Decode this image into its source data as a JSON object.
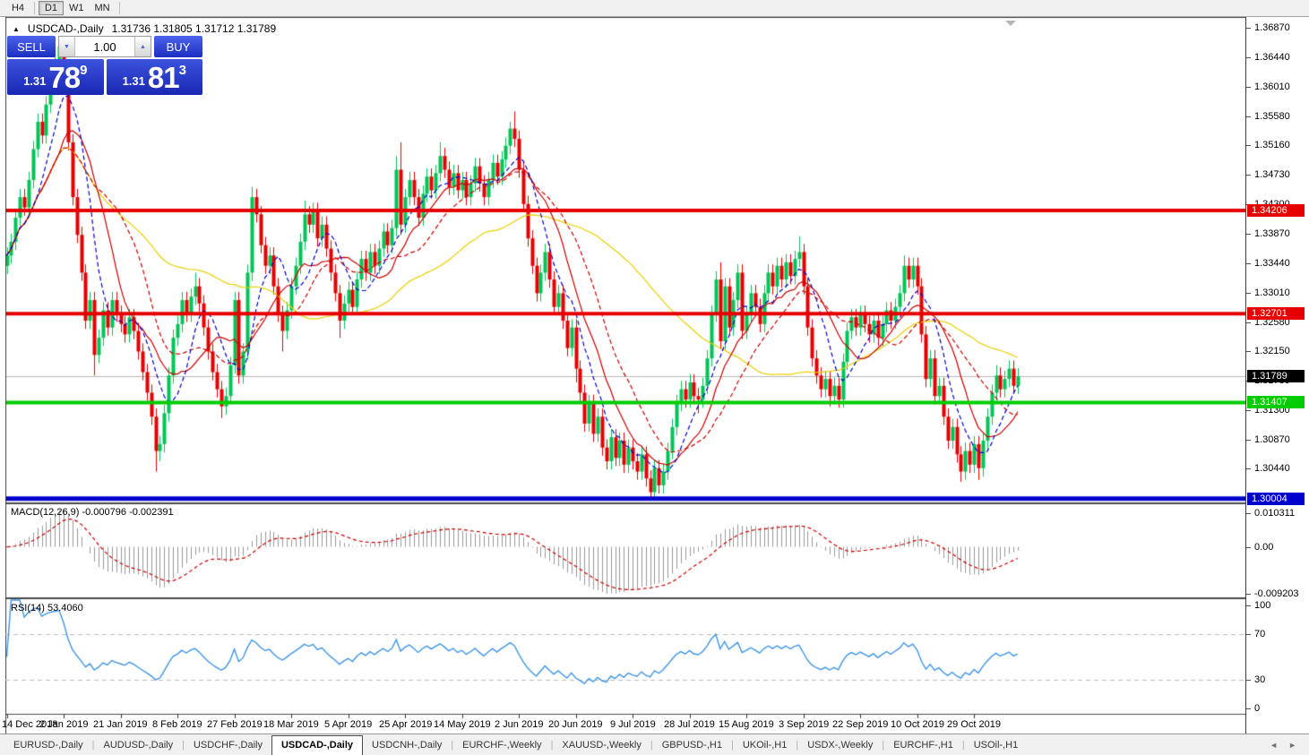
{
  "toolbar": {
    "timeframes": [
      "H4",
      "D1",
      "W1",
      "MN"
    ],
    "active": "D1"
  },
  "header": {
    "collapse_icon": "▲",
    "symbol": "USDCAD-,Daily",
    "ohlc_line": "1.31736 1.31805 1.31712 1.31789"
  },
  "trade_panel": {
    "sell_label": "SELL",
    "buy_label": "BUY",
    "lot_value": "1.00",
    "lot_down_icon": "▼",
    "lot_up_icon": "▲",
    "sell_price": {
      "prefix": "1.31",
      "big": "78",
      "sup": "9"
    },
    "buy_price": {
      "prefix": "1.31",
      "big": "81",
      "sup": "3"
    }
  },
  "price_axis": {
    "ticks": [
      "1.36870",
      "1.36440",
      "1.36010",
      "1.35580",
      "1.35160",
      "1.34730",
      "1.34300",
      "1.33870",
      "1.33440",
      "1.33010",
      "1.32580",
      "1.32150",
      "1.31730",
      "1.31300",
      "1.30870",
      "1.30440"
    ],
    "line_labels": [
      {
        "text": "1.34206",
        "price": 1.34206,
        "bg": "#e60000",
        "fg": "#ffffff"
      },
      {
        "text": "1.32701",
        "price": 1.32701,
        "bg": "#e60000",
        "fg": "#ffffff"
      },
      {
        "text": "1.31789",
        "price": 1.31789,
        "bg": "#000000",
        "fg": "#ffffff"
      },
      {
        "text": "1.31407",
        "price": 1.31407,
        "bg": "#00cc00",
        "fg": "#ffffff"
      },
      {
        "text": "1.30004",
        "price": 1.30004,
        "bg": "#0000cd",
        "fg": "#ffffff"
      }
    ]
  },
  "indicators": {
    "macd_label": "MACD(12,26,9) -0.000796 -0.002391",
    "rsi_label": "RSI(14) 53.4060",
    "macd_axis": [
      "0.010311",
      "0.00",
      "-0.009203"
    ],
    "rsi_axis": [
      "100",
      "70",
      "30",
      "0"
    ]
  },
  "chart_data": {
    "type": "candlestick",
    "symbol": "USDCAD",
    "period": "Daily",
    "x_labels": [
      "14 Dec 2018",
      "2 Jan 2019",
      "21 Jan 2019",
      "8 Feb 2019",
      "27 Feb 2019",
      "18 Mar 2019",
      "5 Apr 2019",
      "25 Apr 2019",
      "14 May 2019",
      "2 Jun 2019",
      "20 Jun 2019",
      "9 Jul 2019",
      "28 Jul 2019",
      "15 Aug 2019",
      "3 Sep 2019",
      "22 Sep 2019",
      "10 Oct 2019",
      "29 Oct 2019"
    ],
    "label_interval": 13,
    "price_range": [
      1.2995,
      1.37
    ],
    "first_open": 1.334,
    "default_wick": 0.0012,
    "closes": [
      1.3355,
      1.3375,
      1.341,
      1.344,
      1.3425,
      1.3465,
      1.351,
      1.355,
      1.353,
      1.3575,
      1.3615,
      1.364,
      1.366,
      1.361,
      1.352,
      1.344,
      1.3385,
      1.333,
      1.326,
      1.329,
      1.321,
      1.3235,
      1.3275,
      1.325,
      1.329,
      1.327,
      1.3255,
      1.324,
      1.3265,
      1.3245,
      1.3215,
      1.3185,
      1.3155,
      1.312,
      1.307,
      1.308,
      1.3125,
      1.318,
      1.3235,
      1.3255,
      1.329,
      1.327,
      1.3295,
      1.331,
      1.3285,
      1.325,
      1.3215,
      1.3185,
      1.316,
      1.3135,
      1.315,
      1.3195,
      1.329,
      1.318,
      1.3215,
      1.333,
      1.344,
      1.3415,
      1.337,
      1.334,
      1.3355,
      1.331,
      1.327,
      1.3245,
      1.3275,
      1.331,
      1.334,
      1.3375,
      1.3415,
      1.34,
      1.342,
      1.338,
      1.34,
      1.3365,
      1.333,
      1.33,
      1.326,
      1.3285,
      1.3305,
      1.328,
      1.332,
      1.335,
      1.333,
      1.336,
      1.334,
      1.3365,
      1.339,
      1.337,
      1.3395,
      1.348,
      1.34,
      1.344,
      1.3465,
      1.344,
      1.341,
      1.3445,
      1.347,
      1.345,
      1.3475,
      1.35,
      1.348,
      1.3455,
      1.3475,
      1.345,
      1.3465,
      1.344,
      1.346,
      1.3485,
      1.346,
      1.344,
      1.3465,
      1.349,
      1.347,
      1.3495,
      1.3515,
      1.354,
      1.3525,
      1.348,
      1.343,
      1.338,
      1.334,
      1.33,
      1.333,
      1.336,
      1.332,
      1.328,
      1.33,
      1.326,
      1.322,
      1.325,
      1.319,
      1.3155,
      1.311,
      1.314,
      1.3095,
      1.312,
      1.3075,
      1.3055,
      1.309,
      1.306,
      1.3085,
      1.305,
      1.3075,
      1.3055,
      1.304,
      1.3065,
      1.303,
      1.301,
      1.3045,
      1.302,
      1.304,
      1.307,
      1.3105,
      1.314,
      1.316,
      1.3145,
      1.317,
      1.315,
      1.3145,
      1.3165,
      1.3205,
      1.327,
      1.332,
      1.323,
      1.331,
      1.325,
      1.329,
      1.333,
      1.3245,
      1.327,
      1.33,
      1.328,
      1.3255,
      1.33,
      1.333,
      1.331,
      1.334,
      1.332,
      1.3345,
      1.3325,
      1.335,
      1.336,
      1.331,
      1.325,
      1.3205,
      1.318,
      1.316,
      1.3175,
      1.315,
      1.3165,
      1.3145,
      1.32,
      1.3245,
      1.3265,
      1.325,
      1.327,
      1.3255,
      1.324,
      1.326,
      1.3235,
      1.3255,
      1.3275,
      1.326,
      1.328,
      1.33,
      1.334,
      1.332,
      1.334,
      1.331,
      1.324,
      1.3175,
      1.3205,
      1.315,
      1.3165,
      1.312,
      1.3085,
      1.3105,
      1.3065,
      1.304,
      1.307,
      1.305,
      1.308,
      1.3045,
      1.3085,
      1.312,
      1.3155,
      1.318,
      1.316,
      1.3175,
      1.319,
      1.3165,
      1.31789
    ],
    "wick_overrides": {
      "12": [
        1.3664,
        null
      ],
      "13": [
        1.3662,
        null
      ],
      "20": [
        null,
        1.318
      ],
      "34": [
        null,
        1.304
      ],
      "35": [
        null,
        1.3055
      ],
      "43": [
        1.333,
        null
      ],
      "49": [
        null,
        1.3118
      ],
      "56": [
        1.3455,
        null
      ],
      "63": [
        null,
        1.3215
      ],
      "68": [
        1.3435,
        null
      ],
      "76": [
        null,
        1.3235
      ],
      "89": [
        1.35,
        null
      ],
      "90": [
        1.352,
        1.3385
      ],
      "99": [
        1.352,
        null
      ],
      "115": [
        1.355,
        null
      ],
      "116": [
        1.3565,
        null
      ],
      "130": [
        null,
        1.317
      ],
      "147": [
        null,
        1.3
      ],
      "158": [
        null,
        1.3125
      ],
      "163": [
        1.3345,
        null
      ],
      "181": [
        1.3383,
        null
      ],
      "188": [
        null,
        1.3135
      ],
      "205": [
        1.3355,
        null
      ],
      "218": [
        null,
        1.3025
      ],
      "222": [
        null,
        1.3028
      ],
      "226": [
        1.3195,
        null
      ]
    },
    "hlines": [
      {
        "price": 1.34206,
        "color": "#e60000",
        "width": 4
      },
      {
        "price": 1.32701,
        "color": "#e60000",
        "width": 4
      },
      {
        "price": 1.31407,
        "color": "#00cc00",
        "width": 4
      },
      {
        "price": 1.30004,
        "color": "#0000cd",
        "width": 5
      }
    ],
    "current_price": 1.31789,
    "moving_averages": [
      {
        "period": 55,
        "color": "#e8d000",
        "dashed": false
      },
      {
        "period": 13,
        "color": "#cc0000",
        "dashed": false
      },
      {
        "period": 21,
        "color": "#cc0000",
        "dashed": true
      },
      {
        "period": 8,
        "color": "#0000cc",
        "dashed": true
      }
    ],
    "macd": {
      "fast": 12,
      "slow": 26,
      "signal": 9
    },
    "rsi": {
      "period": 14,
      "levels": [
        70,
        30
      ]
    },
    "colors": {
      "bull": "#00c455",
      "bear": "#e60000",
      "hist": "#999999",
      "signal": "#cc0000",
      "rsi": "#3e95e5",
      "price_line": "#b8b8b8",
      "level_dash": "#bbbbbb"
    }
  },
  "tabs": {
    "items": [
      "EURUSD-,Daily",
      "AUDUSD-,Daily",
      "USDCHF-,Daily",
      "USDCAD-,Daily",
      "USDCNH-,Daily",
      "EURCHF-,Weekly",
      "XAUUSD-,Weekly",
      "GBPUSD-,H1",
      "UKOil-,H1",
      "USDX-,Weekly",
      "EURCHF-,H1",
      "USOil-,H1"
    ],
    "active": "USDCAD-,Daily",
    "left_icon": "◄",
    "right_icon": "►"
  },
  "marker": {
    "scroll_icon": "down-triangle"
  }
}
